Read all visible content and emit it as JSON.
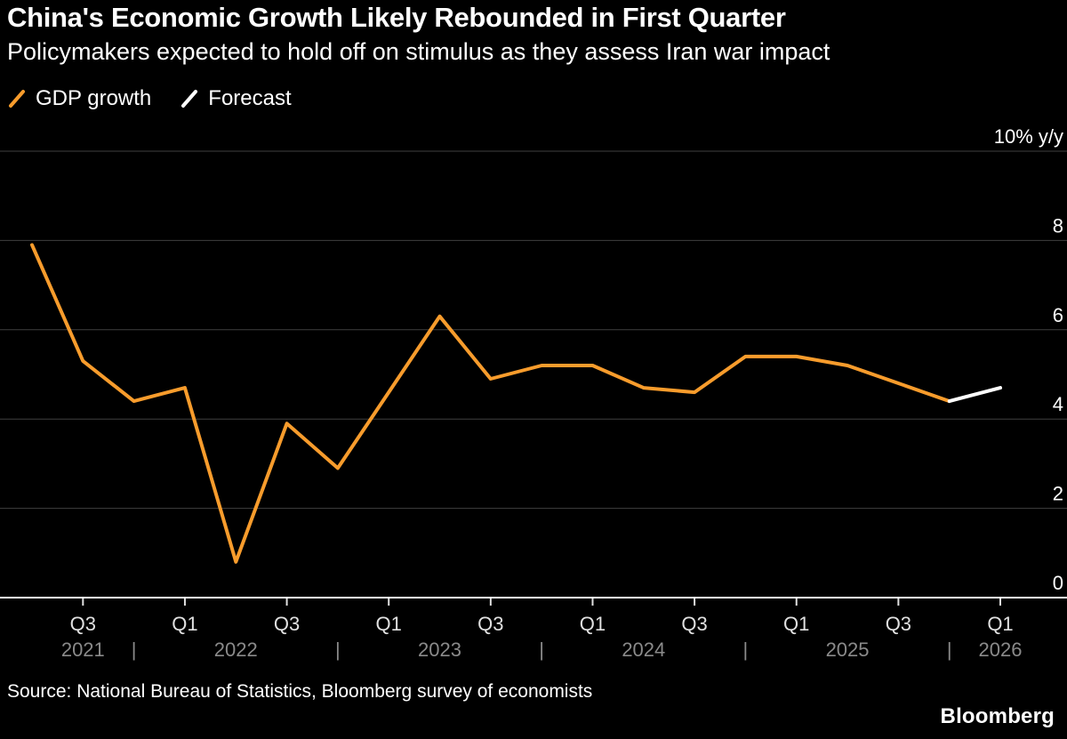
{
  "header": {
    "title": "China's Economic Growth Likely Rebounded in First Quarter",
    "subtitle": "Policymakers expected to hold off on stimulus as they assess Iran war impact"
  },
  "legend": [
    {
      "label": "GDP growth",
      "color": "#f89c2c"
    },
    {
      "label": "Forecast",
      "color": "#ffffff"
    }
  ],
  "footer": {
    "source": "Source: National Bureau of Statistics, Bloomberg survey of economists",
    "brand": "Bloomberg"
  },
  "colors": {
    "background": "#000000",
    "grid": "#3f3f3f",
    "axis": "#ffffff",
    "tick_label": "#e0e0e0",
    "year_label": "#8a8a8a",
    "y_label": "#ffffff",
    "accent_orange": "#f89c2c"
  },
  "chart_data": {
    "type": "line",
    "title": "China's Economic Growth Likely Rebounded in First Quarter",
    "ylabel": "% y/y",
    "ylim": [
      0,
      10
    ],
    "yticks": [
      0,
      2,
      4,
      6,
      8,
      10
    ],
    "ytick_labels": [
      "0",
      "2",
      "4",
      "6",
      "8",
      "10% y/y"
    ],
    "grid": true,
    "legend_position": "top-left",
    "x": [
      "2021 Q2",
      "2021 Q3",
      "2021 Q4",
      "2022 Q1",
      "2022 Q2",
      "2022 Q3",
      "2022 Q4",
      "2023 Q1",
      "2023 Q2",
      "2023 Q3",
      "2023 Q4",
      "2024 Q1",
      "2024 Q2",
      "2024 Q3",
      "2024 Q4",
      "2025 Q1",
      "2025 Q2",
      "2025 Q3",
      "2025 Q4",
      "2026 Q1"
    ],
    "series": [
      {
        "name": "GDP growth",
        "color": "#f89c2c",
        "values": [
          7.9,
          5.3,
          4.4,
          4.7,
          0.8,
          3.9,
          2.9,
          4.6,
          6.3,
          4.9,
          5.2,
          5.2,
          4.7,
          4.6,
          5.4,
          5.4,
          5.2,
          4.8,
          4.4,
          null
        ]
      },
      {
        "name": "Forecast",
        "color": "#ffffff",
        "values": [
          null,
          null,
          null,
          null,
          null,
          null,
          null,
          null,
          null,
          null,
          null,
          null,
          null,
          null,
          null,
          null,
          null,
          null,
          4.4,
          4.7
        ]
      }
    ],
    "x_ticks": [
      {
        "i": 1,
        "label": "Q3"
      },
      {
        "i": 3,
        "label": "Q1"
      },
      {
        "i": 5,
        "label": "Q3"
      },
      {
        "i": 7,
        "label": "Q1"
      },
      {
        "i": 9,
        "label": "Q3"
      },
      {
        "i": 11,
        "label": "Q1"
      },
      {
        "i": 13,
        "label": "Q3"
      },
      {
        "i": 15,
        "label": "Q1"
      },
      {
        "i": 17,
        "label": "Q3"
      },
      {
        "i": 19,
        "label": "Q1"
      }
    ],
    "year_labels": [
      {
        "label": "2021",
        "center_i": 1
      },
      {
        "label": "2022",
        "center_i": 4
      },
      {
        "label": "2023",
        "center_i": 8
      },
      {
        "label": "2024",
        "center_i": 12
      },
      {
        "label": "2025",
        "center_i": 16
      },
      {
        "label": "2026",
        "center_i": 19
      }
    ],
    "year_separators_i": [
      2,
      6,
      10,
      14,
      18
    ]
  }
}
